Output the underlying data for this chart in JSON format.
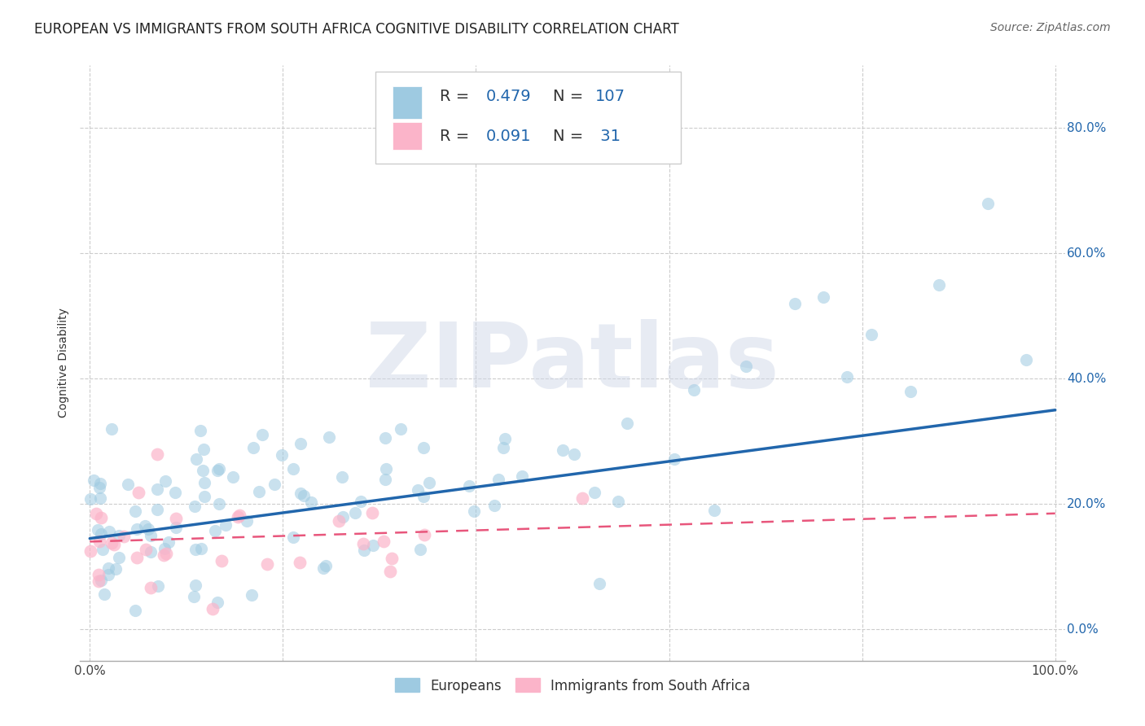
{
  "title": "EUROPEAN VS IMMIGRANTS FROM SOUTH AFRICA COGNITIVE DISABILITY CORRELATION CHART",
  "source": "Source: ZipAtlas.com",
  "ylabel": "Cognitive Disability",
  "watermark": "ZIPatlas",
  "blue_R": 0.479,
  "blue_N": 107,
  "pink_R": 0.091,
  "pink_N": 31,
  "blue_color": "#9ecae1",
  "pink_color": "#fbb4c9",
  "blue_line_color": "#2166ac",
  "pink_line_color": "#e8567c",
  "background_color": "#ffffff",
  "grid_color": "#cccccc",
  "xlim": [
    -0.01,
    1.01
  ],
  "ylim": [
    -0.05,
    0.9
  ],
  "xtick_positions": [
    0.0,
    1.0
  ],
  "xtick_labels": [
    "0.0%",
    "100.0%"
  ],
  "ytick_positions": [
    0.0,
    0.2,
    0.4,
    0.6,
    0.8
  ],
  "ytick_labels": [
    "0.0%",
    "20.0%",
    "40.0%",
    "60.0%",
    "80.0%"
  ],
  "title_fontsize": 12,
  "source_fontsize": 10,
  "axis_label_fontsize": 10,
  "tick_fontsize": 11,
  "legend_fontsize": 14
}
